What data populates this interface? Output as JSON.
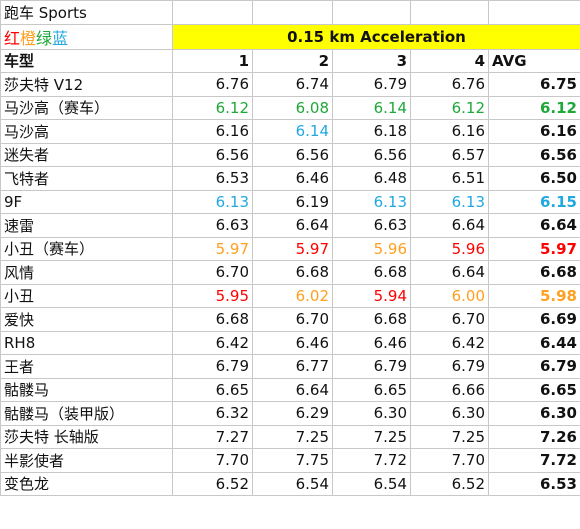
{
  "title": "跑车 Sports",
  "legend": {
    "red": "红",
    "orange": "橙",
    "green": "绿",
    "blue": "蓝"
  },
  "banner": "0.15 km Acceleration",
  "header": {
    "car": "车型",
    "c1": "1",
    "c2": "2",
    "c3": "3",
    "c4": "4",
    "avg": "AVG"
  },
  "colors": {
    "red": "#ff0000",
    "orange": "#ffa020",
    "green": "#1fa83a",
    "blue": "#22a8e0",
    "black": "#111111",
    "banner": "#ffff00"
  },
  "rows": [
    {
      "name": "莎夫特 V12",
      "v": [
        "6.76",
        "6.74",
        "6.79",
        "6.76"
      ],
      "avg": "6.75",
      "c": [
        "black",
        "black",
        "black",
        "black"
      ],
      "ac": "black"
    },
    {
      "name": "马沙高（赛车）",
      "v": [
        "6.12",
        "6.08",
        "6.14",
        "6.12"
      ],
      "avg": "6.12",
      "c": [
        "green",
        "green",
        "green",
        "green"
      ],
      "ac": "green"
    },
    {
      "name": "马沙高",
      "v": [
        "6.16",
        "6.14",
        "6.18",
        "6.16"
      ],
      "avg": "6.16",
      "c": [
        "black",
        "blue",
        "black",
        "black"
      ],
      "ac": "black"
    },
    {
      "name": "迷失者",
      "v": [
        "6.56",
        "6.56",
        "6.56",
        "6.57"
      ],
      "avg": "6.56",
      "c": [
        "black",
        "black",
        "black",
        "black"
      ],
      "ac": "black"
    },
    {
      "name": "飞特者",
      "v": [
        "6.53",
        "6.46",
        "6.48",
        "6.51"
      ],
      "avg": "6.50",
      "c": [
        "black",
        "black",
        "black",
        "black"
      ],
      "ac": "black"
    },
    {
      "name": "9F",
      "v": [
        "6.13",
        "6.19",
        "6.13",
        "6.13"
      ],
      "avg": "6.15",
      "c": [
        "blue",
        "black",
        "blue",
        "blue"
      ],
      "ac": "blue"
    },
    {
      "name": "速雷",
      "v": [
        "6.63",
        "6.64",
        "6.63",
        "6.64"
      ],
      "avg": "6.64",
      "c": [
        "black",
        "black",
        "black",
        "black"
      ],
      "ac": "black"
    },
    {
      "name": "小丑（赛车）",
      "v": [
        "5.97",
        "5.97",
        "5.96",
        "5.96"
      ],
      "avg": "5.97",
      "c": [
        "orange",
        "red",
        "orange",
        "red"
      ],
      "ac": "red"
    },
    {
      "name": "风情",
      "v": [
        "6.70",
        "6.68",
        "6.68",
        "6.64"
      ],
      "avg": "6.68",
      "c": [
        "black",
        "black",
        "black",
        "black"
      ],
      "ac": "black"
    },
    {
      "name": "小丑",
      "v": [
        "5.95",
        "6.02",
        "5.94",
        "6.00"
      ],
      "avg": "5.98",
      "c": [
        "red",
        "orange",
        "red",
        "orange"
      ],
      "ac": "orange"
    },
    {
      "name": "爱快",
      "v": [
        "6.68",
        "6.70",
        "6.68",
        "6.70"
      ],
      "avg": "6.69",
      "c": [
        "black",
        "black",
        "black",
        "black"
      ],
      "ac": "black"
    },
    {
      "name": "RH8",
      "v": [
        "6.42",
        "6.46",
        "6.46",
        "6.42"
      ],
      "avg": "6.44",
      "c": [
        "black",
        "black",
        "black",
        "black"
      ],
      "ac": "black"
    },
    {
      "name": "王者",
      "v": [
        "6.79",
        "6.77",
        "6.79",
        "6.79"
      ],
      "avg": "6.79",
      "c": [
        "black",
        "black",
        "black",
        "black"
      ],
      "ac": "black"
    },
    {
      "name": "骷髅马",
      "v": [
        "6.65",
        "6.64",
        "6.65",
        "6.66"
      ],
      "avg": "6.65",
      "c": [
        "black",
        "black",
        "black",
        "black"
      ],
      "ac": "black"
    },
    {
      "name": "骷髅马（装甲版）",
      "v": [
        "6.32",
        "6.29",
        "6.30",
        "6.30"
      ],
      "avg": "6.30",
      "c": [
        "black",
        "black",
        "black",
        "black"
      ],
      "ac": "black"
    },
    {
      "name": "莎夫特 长轴版",
      "v": [
        "7.27",
        "7.25",
        "7.25",
        "7.25"
      ],
      "avg": "7.26",
      "c": [
        "black",
        "black",
        "black",
        "black"
      ],
      "ac": "black"
    },
    {
      "name": "半影使者",
      "v": [
        "7.70",
        "7.75",
        "7.72",
        "7.70"
      ],
      "avg": "7.72",
      "c": [
        "black",
        "black",
        "black",
        "black"
      ],
      "ac": "black"
    },
    {
      "name": "变色龙",
      "v": [
        "6.52",
        "6.54",
        "6.54",
        "6.52"
      ],
      "avg": "6.53",
      "c": [
        "black",
        "black",
        "black",
        "black"
      ],
      "ac": "black"
    }
  ]
}
